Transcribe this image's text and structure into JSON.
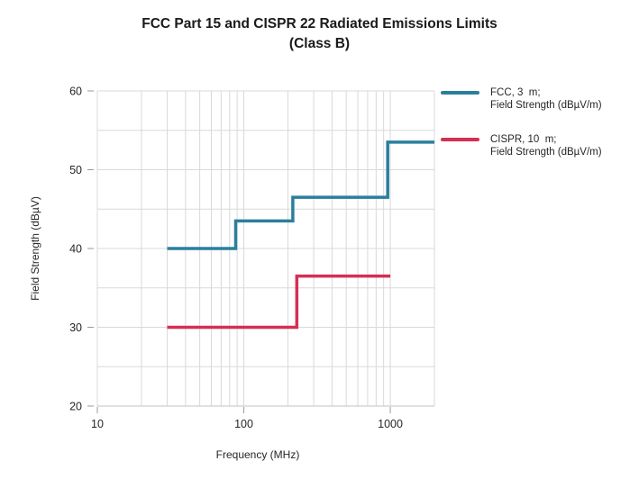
{
  "title": {
    "line1": "FCC Part 15 and CISPR 22 Radiated Emissions Limits",
    "line2": "(Class B)"
  },
  "colors": {
    "fcc": "#2b7f9c",
    "cispr": "#d52f52",
    "grid": "#d9d9d9",
    "axis_line": "#c2c2c2",
    "tick": "#9a9a9a",
    "text": "#262626"
  },
  "legend": {
    "position": "right",
    "items": [
      {
        "id": "fcc",
        "label": "FCC, 3  m;\nField Strength (dBµV/m)"
      },
      {
        "id": "cispr",
        "label": "CISPR, 10  m;\nField Strength (dBµV/m)"
      }
    ]
  },
  "chart_data": {
    "type": "line",
    "subtype": "step",
    "title": "FCC Part 15 and CISPR 22 Radiated Emissions Limits (Class B)",
    "grid": true,
    "legend_position": "right",
    "x_axis": {
      "label": "Frequency (MHz)",
      "scale": "log",
      "min": 10,
      "max": 2000,
      "ticks": [
        10,
        100,
        1000
      ],
      "minor_gridlines": "log-decade multiples (20-90, 200-900, 2000)"
    },
    "y_axis": {
      "label": "Field Strength (dBµV)",
      "min": 20,
      "max": 60,
      "ticks": [
        20,
        30,
        40,
        50,
        60
      ],
      "gridline_step": 5
    },
    "series": [
      {
        "name": "FCC, 3 m; Field Strength (dBµV/m)",
        "color_key": "fcc",
        "steps": [
          {
            "from_mhz": 30,
            "to_mhz": 88,
            "value_dbuv_m": 40
          },
          {
            "from_mhz": 88,
            "to_mhz": 216,
            "value_dbuv_m": 43.5
          },
          {
            "from_mhz": 216,
            "to_mhz": 960,
            "value_dbuv_m": 46.5
          },
          {
            "from_mhz": 960,
            "to_mhz": 2000,
            "value_dbuv_m": 53.5
          }
        ]
      },
      {
        "name": "CISPR, 10 m; Field Strength (dBµV/m)",
        "color_key": "cispr",
        "steps": [
          {
            "from_mhz": 30,
            "to_mhz": 230,
            "value_dbuv_m": 30
          },
          {
            "from_mhz": 230,
            "to_mhz": 1000,
            "value_dbuv_m": 36.5
          }
        ]
      }
    ]
  }
}
